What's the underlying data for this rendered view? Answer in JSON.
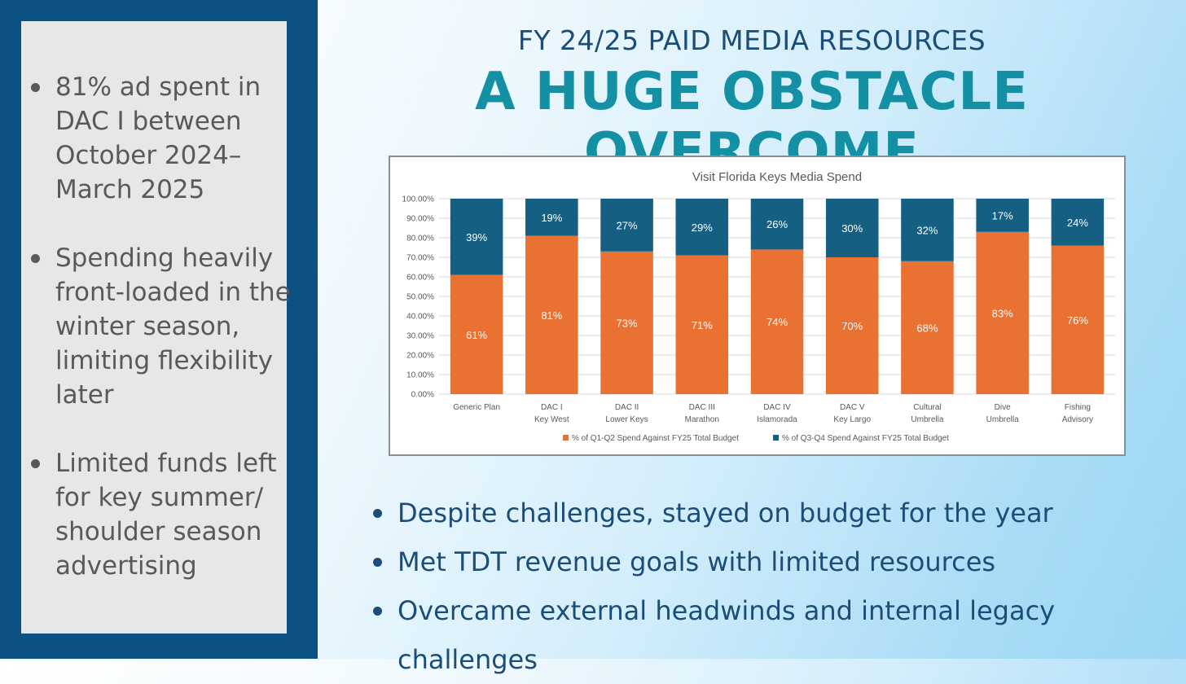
{
  "left_panel": {
    "bullets": [
      "81% ad spent in DAC I between October 2024–March 2025",
      "Spending heavily front-loaded in the winter season, limiting flexibility later",
      "Limited funds left for key summer/ shoulder season advertising"
    ]
  },
  "header": {
    "subtitle": "FY 24/25 PAID MEDIA RESOURCES",
    "title": "A HUGE OBSTACLE OVERCOME"
  },
  "chart_data": {
    "type": "bar",
    "stacked": true,
    "title": "Visit Florida Keys Media Spend",
    "categories": [
      [
        "Generic Plan"
      ],
      [
        "DAC I",
        "Key West"
      ],
      [
        "DAC II",
        "Lower Keys"
      ],
      [
        "DAC III",
        "Marathon"
      ],
      [
        "DAC IV",
        "Islamorada"
      ],
      [
        "DAC V",
        "Key Largo"
      ],
      [
        "Cultural",
        "Umbrella"
      ],
      [
        "Dive",
        "Umbrella"
      ],
      [
        "Fishing",
        "Advisory"
      ]
    ],
    "series": [
      {
        "name": "% of Q1-Q2 Spend Against FY25 Total Budget",
        "color": "#e97132",
        "values": [
          61,
          81,
          73,
          71,
          74,
          70,
          68,
          83,
          76
        ]
      },
      {
        "name": "% of Q3-Q4 Spend Against FY25 Total Budget",
        "color": "#156082",
        "values": [
          39,
          19,
          27,
          29,
          26,
          30,
          32,
          17,
          24
        ]
      }
    ],
    "ylim": [
      0,
      100
    ],
    "yticks": [
      "0.00%",
      "10.00%",
      "20.00%",
      "30.00%",
      "40.00%",
      "50.00%",
      "60.00%",
      "70.00%",
      "80.00%",
      "90.00%",
      "100.00%"
    ],
    "grid": true,
    "legend": "bottom"
  },
  "bottom_bullets": [
    "Despite challenges, stayed on budget for the year",
    "Met TDT revenue goals with limited resources",
    "Overcame external headwinds and internal legacy challenges"
  ]
}
